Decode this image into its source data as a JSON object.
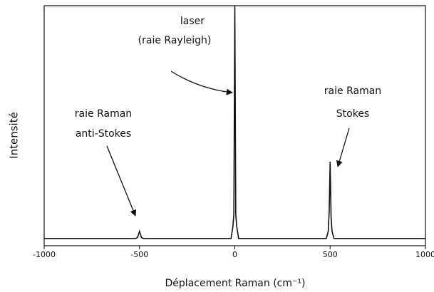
{
  "chart_data": {
    "type": "line",
    "xlabel": "Déplacement Raman (cm⁻¹)",
    "ylabel": "Intensité",
    "x": [
      -1000,
      -520,
      -510,
      -500,
      -490,
      -480,
      -20,
      -10,
      -5,
      0,
      5,
      10,
      20,
      480,
      490,
      495,
      500,
      505,
      510,
      520,
      1000
    ],
    "series": [
      {
        "color": "#111111",
        "values": [
          3,
          3,
          3.5,
          6,
          3.5,
          3,
          3,
          8,
          13,
          100,
          13,
          8,
          3,
          3,
          6,
          14,
          35,
          12,
          6,
          3,
          3
        ]
      }
    ],
    "xlim": [
      -1000,
      1000
    ],
    "xticks": [
      -1000,
      -500,
      0,
      500,
      1000
    ],
    "ylim": [
      0,
      100
    ],
    "annotations": [
      [
        "laser",
        "(raie Rayleigh)"
      ],
      [
        "raie Raman",
        "Stokes"
      ],
      [
        "raie Raman",
        "anti-Stokes"
      ]
    ]
  }
}
